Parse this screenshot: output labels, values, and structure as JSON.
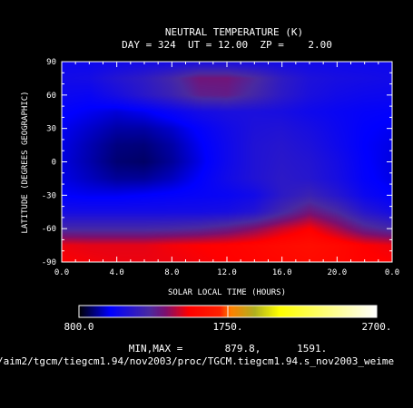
{
  "header": {
    "title": "NEUTRAL TEMPERATURE (K)",
    "subtitle": "DAY = 324  UT = 12.00  ZP =    2.00"
  },
  "footer": {
    "minmax": "MIN,MAX =       879.8,      1591.",
    "path": "/aim2/tgcm/tiegcm1.94/nov2003/proc/TGCM.tiegcm1.94.s_nov2003_weime"
  },
  "chart_data": {
    "type": "heatmap",
    "title": "NEUTRAL TEMPERATURE (K)",
    "xlabel": "SOLAR LOCAL TIME (HOURS)",
    "ylabel": "LATITUDE (DEGREES GEOGRAPHIC)",
    "xlim": [
      0,
      24
    ],
    "ylim": [
      -90,
      90
    ],
    "x_ticks": [
      "0.0",
      "4.0",
      "8.0",
      "12.0",
      "16.0",
      "20.0",
      "0.0"
    ],
    "y_ticks": [
      "90",
      "60",
      "30",
      "0",
      "-30",
      "-60",
      "-90"
    ],
    "x": [
      0,
      2,
      4,
      6,
      8,
      10,
      12,
      14,
      16,
      18,
      20,
      22,
      24
    ],
    "y": [
      90,
      75,
      60,
      45,
      30,
      15,
      0,
      -15,
      -30,
      -45,
      -60,
      -75,
      -90
    ],
    "values": [
      [
        1045,
        1040,
        1050,
        1060,
        1065,
        1070,
        1070,
        1065,
        1060,
        1055,
        1050,
        1045,
        1045
      ],
      [
        1060,
        1070,
        1120,
        1160,
        1230,
        1330,
        1330,
        1260,
        1160,
        1100,
        1080,
        1070,
        1060
      ],
      [
        1040,
        1030,
        1080,
        1140,
        1200,
        1290,
        1300,
        1230,
        1150,
        1090,
        1060,
        1045,
        1040
      ],
      [
        1010,
        990,
        970,
        990,
        1030,
        1070,
        1090,
        1090,
        1080,
        1050,
        1030,
        1015,
        1010
      ],
      [
        990,
        960,
        930,
        930,
        960,
        1010,
        1060,
        1100,
        1110,
        1080,
        1040,
        1005,
        990
      ],
      [
        980,
        940,
        900,
        895,
        930,
        990,
        1050,
        1110,
        1130,
        1100,
        1050,
        1000,
        980
      ],
      [
        975,
        935,
        890,
        880,
        920,
        980,
        1050,
        1110,
        1140,
        1120,
        1070,
        1005,
        975
      ],
      [
        980,
        950,
        920,
        920,
        950,
        1000,
        1060,
        1110,
        1150,
        1130,
        1080,
        1010,
        980
      ],
      [
        1000,
        990,
        990,
        1000,
        1010,
        1020,
        1030,
        1060,
        1150,
        1200,
        1130,
        1040,
        1000
      ],
      [
        1070,
        1070,
        1070,
        1070,
        1070,
        1070,
        1080,
        1120,
        1230,
        1330,
        1250,
        1130,
        1070
      ],
      [
        1230,
        1230,
        1230,
        1230,
        1240,
        1260,
        1300,
        1360,
        1440,
        1500,
        1400,
        1290,
        1230
      ],
      [
        1480,
        1470,
        1470,
        1470,
        1490,
        1500,
        1510,
        1530,
        1560,
        1580,
        1550,
        1500,
        1480
      ],
      [
        1500,
        1490,
        1480,
        1480,
        1480,
        1490,
        1500,
        1520,
        1540,
        1560,
        1540,
        1510,
        1500
      ]
    ],
    "min": 879.8,
    "max": 1591,
    "colorbar": {
      "range": [
        800,
        2700
      ],
      "tick_labels": [
        "800.0",
        "1750.",
        "2700."
      ],
      "stops": [
        {
          "v": 800,
          "color": "#000000"
        },
        {
          "v": 1000,
          "color": "#0000ff"
        },
        {
          "v": 1250,
          "color": "#4a2aa0"
        },
        {
          "v": 1350,
          "color": "#7a1070"
        },
        {
          "v": 1500,
          "color": "#ff0000"
        },
        {
          "v": 1700,
          "color": "#ff2200"
        },
        {
          "v": 1770,
          "color": "#ff8000"
        },
        {
          "v": 1920,
          "color": "#b0b020"
        },
        {
          "v": 2080,
          "color": "#ffff00"
        },
        {
          "v": 2700,
          "color": "#ffffff"
        }
      ]
    }
  }
}
